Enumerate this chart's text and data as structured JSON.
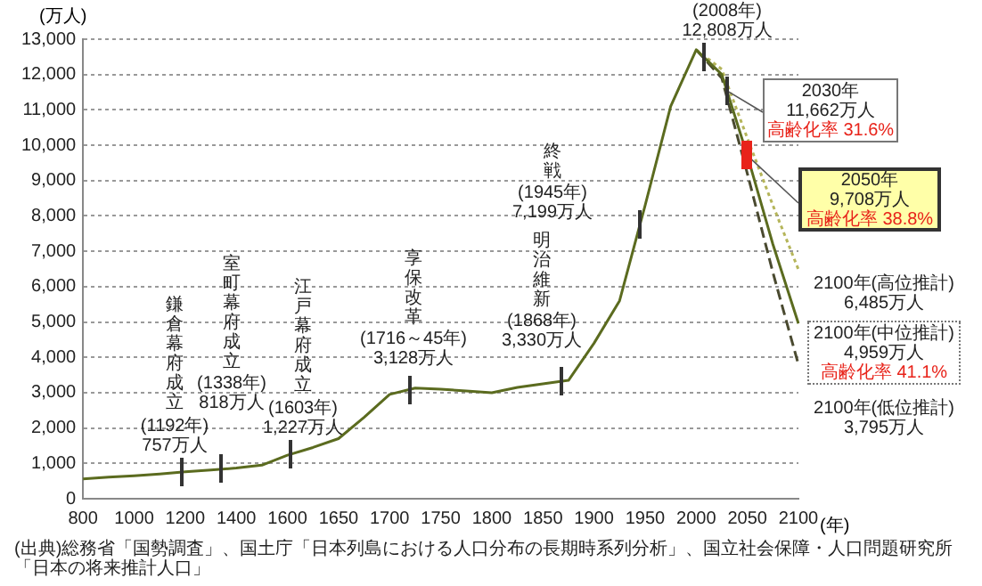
{
  "chart_data": {
    "type": "line",
    "ylabel": "(万人)",
    "xlabel": "(年)",
    "categories": [
      "800",
      null,
      "1000",
      null,
      "1200",
      null,
      "1400",
      null,
      "1600",
      null,
      "1650",
      null,
      "1700",
      null,
      "1750",
      null,
      "1800",
      null,
      "1850",
      null,
      "1900",
      null,
      "1950",
      null,
      "2000",
      null,
      "2050",
      null,
      "2100"
    ],
    "series": [
      {
        "color": "#5b6b1f",
        "line_style": "solid",
        "values": [
          560,
          610,
          650,
          700,
          760,
          810,
          870,
          950,
          1230,
          1450,
          1700,
          2300,
          2950,
          3130,
          3100,
          3050,
          3000,
          3150,
          3250,
          3350,
          4400,
          5600,
          8300,
          11100,
          12700,
          12000,
          9708,
          7200,
          4959
        ]
      },
      {
        "color": "#b5b55a",
        "line_style": "dotted",
        "values": [
          null,
          null,
          null,
          null,
          null,
          null,
          null,
          null,
          null,
          null,
          null,
          null,
          null,
          null,
          null,
          null,
          null,
          null,
          null,
          null,
          null,
          null,
          null,
          null,
          12700,
          12150,
          10200,
          8300,
          6485
        ]
      },
      {
        "color": "#4a4a30",
        "line_style": "dashed",
        "values": [
          null,
          null,
          null,
          null,
          null,
          null,
          null,
          null,
          null,
          null,
          null,
          null,
          null,
          null,
          null,
          null,
          null,
          null,
          null,
          null,
          null,
          null,
          null,
          null,
          12700,
          11900,
          9200,
          6400,
          3795
        ]
      }
    ],
    "ylim": [
      0,
      13000
    ],
    "yticks": [
      0,
      {
        "value": 1000,
        "label": "1,000"
      },
      {
        "value": 2000,
        "label": "2,000"
      },
      {
        "value": 3000,
        "label": "3,000"
      },
      {
        "value": 4000,
        "label": "4,000"
      },
      {
        "value": 5000,
        "label": "5,000"
      },
      {
        "value": 6000,
        "label": "6,000"
      },
      {
        "value": 7000,
        "label": "7,000"
      },
      {
        "value": 8000,
        "label": "8,000"
      },
      {
        "value": 9000,
        "label": "9,000"
      },
      {
        "value": 10000,
        "label": "10,000"
      },
      {
        "value": 11000,
        "label": "11,000"
      },
      {
        "value": 12000,
        "label": "12,000"
      },
      {
        "value": 13000,
        "label": "13,000"
      }
    ],
    "grid": "y",
    "legend": false,
    "marker": "none",
    "annotations": [
      "鎌倉幕府成立",
      "(1192年)",
      "757万人",
      "室町幕府成立",
      "(1338年)",
      "818万人",
      "江戸幕府成立",
      "(1603年)",
      "1,227万人",
      "享保改革",
      "(1716～45年)",
      "3,128万人",
      "明治維新",
      "(1868年)",
      "3,330万人",
      "終戦",
      "(1945年)",
      "7,199万人",
      "(2008年)",
      "12,808万人",
      "2030年",
      "11,662万人",
      "高齢化率 31.6%",
      "2050年",
      "9,708万人",
      "高齢化率 38.8%",
      "2100年(高位推計)",
      "6,485万人",
      "2100年(中位推計)",
      "4,959万人",
      "高齢化率 41.1%",
      "2100年(低位推計)",
      "3,795万人",
      "(出典)総務省「国勢調査」、国土庁「日本列島における人口分布の長期時系列分析」、国立社会保障・人口問題研究所「日本の将来推計人口」"
    ]
  }
}
